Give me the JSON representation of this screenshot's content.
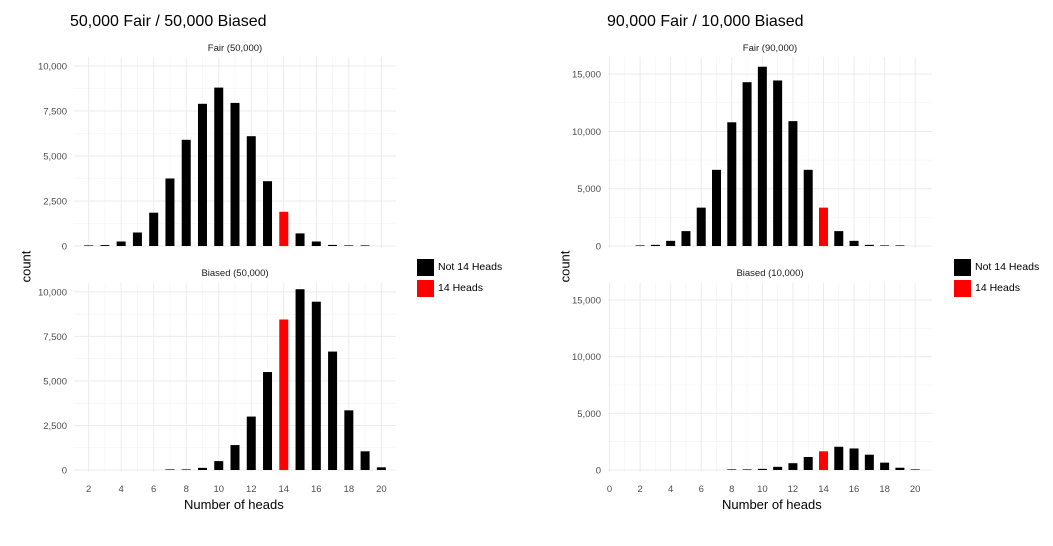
{
  "figures": [
    {
      "title": "50,000 Fair / 50,000 Biased",
      "xlabel": "Number of heads",
      "ylabel": "count"
    },
    {
      "title": "90,000 Fair / 10,000 Biased",
      "xlabel": "Number of heads",
      "ylabel": "count"
    }
  ],
  "legend": {
    "items": [
      {
        "label": "Not 14 Heads",
        "color": "#000000"
      },
      {
        "label": "14 Heads",
        "color": "#ff0000"
      }
    ]
  },
  "chart_data": [
    {
      "type": "bar",
      "title": "50,000 Fair / 50,000 Biased",
      "xlabel": "Number of heads",
      "ylabel": "count",
      "xlim": [
        1.1,
        20.9
      ],
      "x_ticks": [
        2,
        4,
        6,
        8,
        10,
        12,
        14,
        16,
        18,
        20
      ],
      "y_ticks": [
        0,
        2500,
        5000,
        7500,
        10000
      ],
      "y_tick_labels": [
        "0",
        "2,500",
        "5,000",
        "7,500",
        "10,000"
      ],
      "ylim": [
        0,
        10500
      ],
      "highlight_x": 14,
      "panels": [
        {
          "strip": "Fair (50,000)",
          "x": [
            2,
            3,
            4,
            5,
            6,
            7,
            8,
            9,
            10,
            11,
            12,
            13,
            14,
            15,
            16,
            17,
            18,
            19
          ],
          "values": [
            10,
            50,
            250,
            750,
            1850,
            3750,
            5900,
            7900,
            8800,
            7950,
            6100,
            3600,
            1900,
            700,
            250,
            60,
            10,
            2
          ]
        },
        {
          "strip": "Biased (50,000)",
          "x": [
            7,
            8,
            9,
            10,
            11,
            12,
            13,
            14,
            15,
            16,
            17,
            18,
            19,
            20
          ],
          "values": [
            5,
            25,
            120,
            500,
            1400,
            3000,
            5500,
            8450,
            10150,
            9450,
            6650,
            3350,
            1050,
            150
          ]
        }
      ]
    },
    {
      "type": "bar",
      "title": "90,000 Fair / 10,000 Biased",
      "xlabel": "Number of heads",
      "ylabel": "count",
      "xlim": [
        -0.1,
        21.1
      ],
      "x_ticks": [
        0,
        2,
        4,
        6,
        8,
        10,
        12,
        14,
        16,
        18,
        20
      ],
      "y_ticks": [
        0,
        5000,
        10000,
        15000
      ],
      "y_tick_labels": [
        "0",
        "5,000",
        "10,000",
        "15,000"
      ],
      "ylim": [
        0,
        16500
      ],
      "highlight_x": 14,
      "panels": [
        {
          "strip": "Fair (90,000)",
          "x": [
            2,
            3,
            4,
            5,
            6,
            7,
            8,
            9,
            10,
            11,
            12,
            13,
            14,
            15,
            16,
            17,
            18,
            19
          ],
          "values": [
            20,
            100,
            450,
            1300,
            3350,
            6650,
            10800,
            14300,
            15650,
            14450,
            10900,
            6650,
            3350,
            1300,
            450,
            100,
            25,
            5
          ],
          "x_end_pad": 1
        },
        {
          "strip": "Biased (10,000)",
          "x": [
            8,
            9,
            10,
            11,
            12,
            13,
            14,
            15,
            16,
            17,
            18,
            19,
            20
          ],
          "values": [
            10,
            25,
            100,
            280,
            600,
            1150,
            1650,
            2050,
            1900,
            1350,
            650,
            200,
            20
          ]
        }
      ]
    }
  ]
}
